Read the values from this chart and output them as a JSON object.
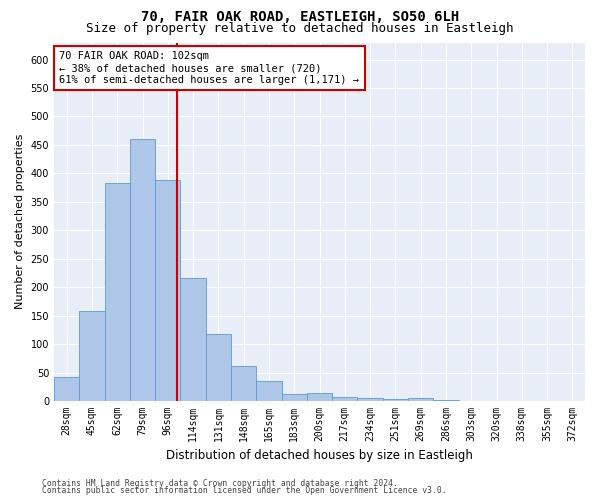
{
  "title1": "70, FAIR OAK ROAD, EASTLEIGH, SO50 6LH",
  "title2": "Size of property relative to detached houses in Eastleigh",
  "xlabel": "Distribution of detached houses by size in Eastleigh",
  "ylabel": "Number of detached properties",
  "bar_labels": [
    "28sqm",
    "45sqm",
    "62sqm",
    "79sqm",
    "96sqm",
    "114sqm",
    "131sqm",
    "148sqm",
    "165sqm",
    "183sqm",
    "200sqm",
    "217sqm",
    "234sqm",
    "251sqm",
    "269sqm",
    "286sqm",
    "303sqm",
    "320sqm",
    "338sqm",
    "355sqm",
    "372sqm"
  ],
  "bar_values": [
    42,
    158,
    383,
    460,
    388,
    216,
    118,
    62,
    35,
    13,
    14,
    8,
    5,
    3,
    5,
    2,
    0,
    0,
    0,
    0,
    0
  ],
  "bar_color": "#aec6e8",
  "bar_edge_color": "#5b9bd5",
  "vline_color": "#cc0000",
  "annotation_box_text": "70 FAIR OAK ROAD: 102sqm\n← 38% of detached houses are smaller (720)\n61% of semi-detached houses are larger (1,171) →",
  "annotation_box_color": "#cc0000",
  "ylim": [
    0,
    630
  ],
  "yticks": [
    0,
    50,
    100,
    150,
    200,
    250,
    300,
    350,
    400,
    450,
    500,
    550,
    600
  ],
  "footnote1": "Contains HM Land Registry data © Crown copyright and database right 2024.",
  "footnote2": "Contains public sector information licensed under the Open Government Licence v3.0.",
  "plot_bg_color": "#e8eef8",
  "title1_fontsize": 10,
  "title2_fontsize": 9,
  "xlabel_fontsize": 8.5,
  "ylabel_fontsize": 8,
  "tick_fontsize": 7,
  "annot_fontsize": 7.5
}
